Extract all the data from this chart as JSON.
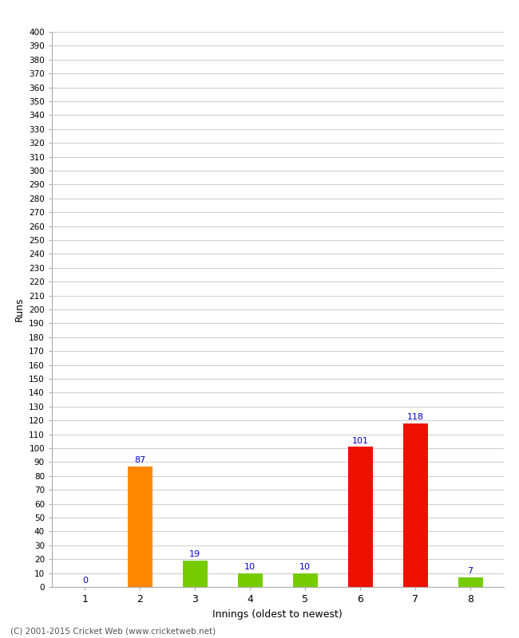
{
  "xlabel": "Innings (oldest to newest)",
  "ylabel": "Runs",
  "categories": [
    "1",
    "2",
    "3",
    "4",
    "5",
    "6",
    "7",
    "8"
  ],
  "values": [
    0,
    87,
    19,
    10,
    10,
    101,
    118,
    7
  ],
  "bar_colors": [
    "#ff8800",
    "#ff8800",
    "#77cc00",
    "#77cc00",
    "#77cc00",
    "#ee1100",
    "#ee1100",
    "#77cc00"
  ],
  "ylim": [
    0,
    400
  ],
  "yticks": [
    0,
    10,
    20,
    30,
    40,
    50,
    60,
    70,
    80,
    90,
    100,
    110,
    120,
    130,
    140,
    150,
    160,
    170,
    180,
    190,
    200,
    210,
    220,
    230,
    240,
    250,
    260,
    270,
    280,
    290,
    300,
    310,
    320,
    330,
    340,
    350,
    360,
    370,
    380,
    390,
    400
  ],
  "label_color": "#0000cc",
  "footer": "(C) 2001-2015 Cricket Web (www.cricketweb.net)",
  "bg_color": "#ffffff",
  "grid_color": "#cccccc",
  "bar_width": 0.45
}
